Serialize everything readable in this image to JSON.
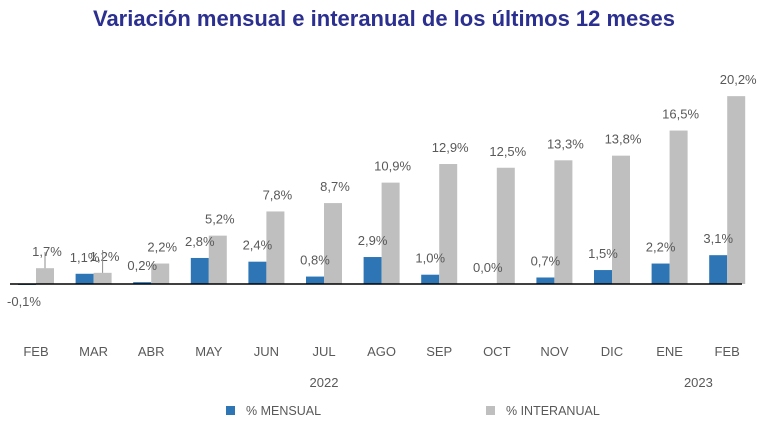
{
  "chart_data": {
    "type": "bar",
    "title": "Variación mensual e interanual de los últimos 12 meses",
    "categories": [
      "FEB",
      "MAR",
      "ABR",
      "MAY",
      "JUN",
      "JUL",
      "AGO",
      "SEP",
      "OCT",
      "NOV",
      "DIC",
      "ENE",
      "FEB"
    ],
    "year_labels": [
      "2022",
      "2023"
    ],
    "series": [
      {
        "name": "% MENSUAL",
        "color": "#2e75b6",
        "values": [
          -0.1,
          1.1,
          0.2,
          2.8,
          2.4,
          0.8,
          2.9,
          1.0,
          0.0,
          0.7,
          1.5,
          2.2,
          3.1
        ],
        "labels": [
          "-0,1%",
          "1,1%",
          "0,2%",
          "2,8%",
          "2,4%",
          "0,8%",
          "2,9%",
          "1,0%",
          "0,0%",
          "0,7%",
          "1,5%",
          "2,2%",
          "3,1%"
        ]
      },
      {
        "name": "% INTERANUAL",
        "color": "#bfbfbf",
        "values": [
          1.7,
          1.2,
          2.2,
          5.2,
          7.8,
          8.7,
          10.9,
          12.9,
          12.5,
          13.3,
          13.8,
          16.5,
          20.2
        ],
        "labels": [
          "1,7%",
          "1,2%",
          "2,2%",
          "5,2%",
          "7,8%",
          "8,7%",
          "10,9%",
          "12,9%",
          "12,5%",
          "13,3%",
          "13,8%",
          "16,5%",
          "20,2%"
        ]
      }
    ],
    "ylim": [
      -0.1,
      20.2
    ],
    "xlabel": "",
    "ylabel": ""
  }
}
